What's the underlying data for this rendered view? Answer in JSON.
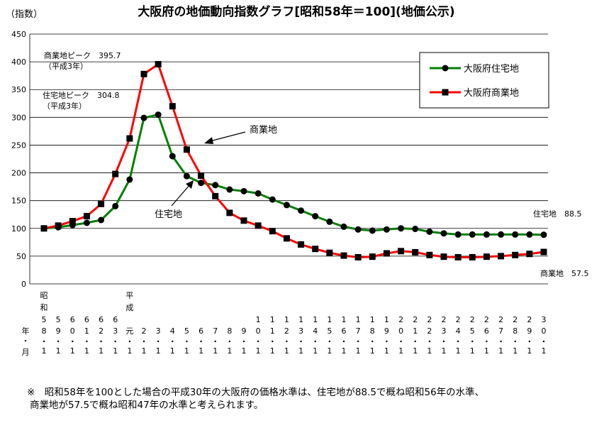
{
  "chart_data": {
    "type": "line",
    "title": "大阪府の地価動向指数グラフ[昭和58年＝100](地価公示)",
    "unit_label": "（指数）",
    "ylim": [
      0,
      450
    ],
    "yticks": [
      0,
      50,
      100,
      150,
      200,
      250,
      300,
      350,
      400,
      450
    ],
    "x": [
      "昭和58",
      "59",
      "60",
      "61",
      "62",
      "63",
      "平成元",
      "2",
      "3",
      "4",
      "5",
      "6",
      "7",
      "8",
      "9",
      "10",
      "11",
      "12",
      "13",
      "14",
      "15",
      "16",
      "17",
      "18",
      "19",
      "20",
      "21",
      "22",
      "23",
      "24",
      "25",
      "26",
      "27",
      "28",
      "29",
      "30"
    ],
    "x_tick_labels": [
      {
        "era": "昭和",
        "chars": [
          "5",
          "8"
        ]
      },
      {
        "era": "",
        "chars": [
          "5",
          "9"
        ]
      },
      {
        "era": "",
        "chars": [
          "6",
          "0"
        ]
      },
      {
        "era": "",
        "chars": [
          "6",
          "1"
        ]
      },
      {
        "era": "",
        "chars": [
          "6",
          "2"
        ]
      },
      {
        "era": "",
        "chars": [
          "6",
          "3"
        ]
      },
      {
        "era": "平成",
        "chars": [
          "元"
        ]
      },
      {
        "era": "",
        "chars": [
          "2"
        ]
      },
      {
        "era": "",
        "chars": [
          "3"
        ]
      },
      {
        "era": "",
        "chars": [
          "4"
        ]
      },
      {
        "era": "",
        "chars": [
          "5"
        ]
      },
      {
        "era": "",
        "chars": [
          "6"
        ]
      },
      {
        "era": "",
        "chars": [
          "7"
        ]
      },
      {
        "era": "",
        "chars": [
          "8"
        ]
      },
      {
        "era": "",
        "chars": [
          "9"
        ]
      },
      {
        "era": "",
        "chars": [
          "1",
          "0"
        ]
      },
      {
        "era": "",
        "chars": [
          "1",
          "1"
        ]
      },
      {
        "era": "",
        "chars": [
          "1",
          "2"
        ]
      },
      {
        "era": "",
        "chars": [
          "1",
          "3"
        ]
      },
      {
        "era": "",
        "chars": [
          "1",
          "4"
        ]
      },
      {
        "era": "",
        "chars": [
          "1",
          "5"
        ]
      },
      {
        "era": "",
        "chars": [
          "1",
          "6"
        ]
      },
      {
        "era": "",
        "chars": [
          "1",
          "7"
        ]
      },
      {
        "era": "",
        "chars": [
          "1",
          "8"
        ]
      },
      {
        "era": "",
        "chars": [
          "1",
          "9"
        ]
      },
      {
        "era": "",
        "chars": [
          "2",
          "0"
        ]
      },
      {
        "era": "",
        "chars": [
          "2",
          "1"
        ]
      },
      {
        "era": "",
        "chars": [
          "2",
          "2"
        ]
      },
      {
        "era": "",
        "chars": [
          "2",
          "3"
        ]
      },
      {
        "era": "",
        "chars": [
          "2",
          "4"
        ]
      },
      {
        "era": "",
        "chars": [
          "2",
          "5"
        ]
      },
      {
        "era": "",
        "chars": [
          "2",
          "6"
        ]
      },
      {
        "era": "",
        "chars": [
          "2",
          "7"
        ]
      },
      {
        "era": "",
        "chars": [
          "2",
          "8"
        ]
      },
      {
        "era": "",
        "chars": [
          "2",
          "9"
        ]
      },
      {
        "era": "",
        "chars": [
          "3",
          "0"
        ]
      }
    ],
    "x_row_label": "年・月",
    "month_label": "１",
    "series": [
      {
        "name": "大阪府住宅地",
        "color": "#008000",
        "marker": "circle",
        "values": [
          100,
          102,
          106,
          110,
          115,
          140,
          188,
          299,
          304.8,
          230,
          194,
          182,
          178,
          170,
          167,
          163,
          152,
          142,
          132,
          122,
          112,
          103,
          98,
          96,
          98,
          100,
          99,
          94,
          91,
          89,
          89,
          89,
          89,
          89,
          89,
          88.5
        ]
      },
      {
        "name": "大阪府商業地",
        "color": "#ff0000",
        "marker": "square",
        "values": [
          100,
          105,
          113,
          122,
          144,
          198,
          262,
          378,
          395.7,
          320,
          242,
          195,
          158,
          128,
          114,
          105,
          95,
          82,
          71,
          63,
          56,
          51,
          48,
          49,
          55,
          59,
          57,
          52,
          49,
          48,
          48,
          49,
          50,
          52,
          54,
          57.5
        ]
      }
    ],
    "legend": {
      "position": "top-right",
      "box": true
    },
    "grid": {
      "y": true,
      "x": false
    },
    "annotations": {
      "commercial_peak": "商業地ピーク　395.7",
      "commercial_peak_year": "（平成3年）",
      "residential_peak": "住宅地ピーク　304.8",
      "residential_peak_year": "（平成3年）",
      "commercial_arrow_label": "商業地",
      "residential_arrow_label": "住宅地",
      "residential_end": "住宅地　88.5",
      "commercial_end": "商業地　57.5"
    }
  },
  "footnote_line1": "※　昭和58年を100とした場合の平成30年の大阪府の価格水準は、住宅地が88.5で概ね昭和56年の水準、",
  "footnote_line2": "商業地が57.5で概ね昭和47年の水準と考えられます。"
}
